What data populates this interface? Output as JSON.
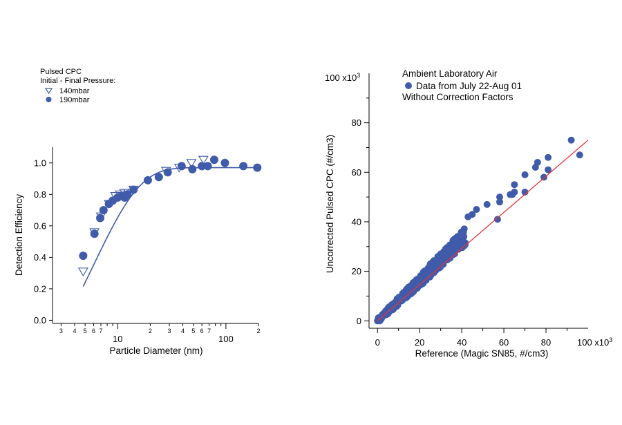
{
  "chart_data": [
    {
      "type": "scatter",
      "xscale": "log",
      "xlabel": "Particle Diameter (nm)",
      "ylabel": "Detection Efficiency",
      "xlim": [
        2.5,
        200
      ],
      "ylim": [
        -0.02,
        1.1
      ],
      "y_ticks": [
        "0.0",
        "0.2",
        "0.4",
        "0.6",
        "0.8",
        "1.0"
      ],
      "y_tick_values": [
        0,
        0.2,
        0.4,
        0.6,
        0.8,
        1.0
      ],
      "x_major_ticks": [
        {
          "value": 10,
          "label": "10"
        },
        {
          "value": 100,
          "label": "100"
        }
      ],
      "x_minor_ticks": [
        {
          "value": 3,
          "label": "3"
        },
        {
          "value": 4,
          "label": "4"
        },
        {
          "value": 5,
          "label": "5"
        },
        {
          "value": 6,
          "label": "6"
        },
        {
          "value": 7,
          "label": "7"
        },
        {
          "value": 20,
          "label": "2"
        },
        {
          "value": 30,
          "label": "3"
        },
        {
          "value": 40,
          "label": "4"
        },
        {
          "value": 50,
          "label": "5"
        },
        {
          "value": 60,
          "label": "6"
        },
        {
          "value": 70,
          "label": "7"
        },
        {
          "value": 200,
          "label": "2"
        },
        {
          "value": 8,
          "label": ""
        },
        {
          "value": 9,
          "label": ""
        },
        {
          "value": 80,
          "label": ""
        },
        {
          "value": 90,
          "label": ""
        }
      ],
      "legend": {
        "title_line1": "Pulsed CPC",
        "title_line2": "Initial - Final Pressure:",
        "position": "top-left"
      },
      "series": [
        {
          "name": "140mbar",
          "marker": "open-triangle-down",
          "color": "#3f5ba9",
          "x": [
            4.8,
            6.1,
            7.0,
            8.3,
            9.5,
            10.5,
            11.5,
            12.5,
            14.0,
            28.0,
            37.0,
            48.0,
            62.0
          ],
          "y": [
            0.31,
            0.56,
            0.66,
            0.74,
            0.79,
            0.8,
            0.81,
            0.81,
            0.83,
            0.95,
            0.97,
            1.0,
            1.02
          ]
        },
        {
          "name": "190mbar",
          "marker": "filled-circle",
          "color": "#3f5ba9",
          "x": [
            4.8,
            6.1,
            6.9,
            7.4,
            8.3,
            9.0,
            10.0,
            10.8,
            11.6,
            12.3,
            14.0,
            19.0,
            24.0,
            29.0,
            39.0,
            49.0,
            60.0,
            68.0,
            78.0,
            98.0,
            145.0,
            195.0
          ],
          "y": [
            0.41,
            0.55,
            0.65,
            0.7,
            0.74,
            0.76,
            0.78,
            0.79,
            0.78,
            0.8,
            0.83,
            0.89,
            0.91,
            0.94,
            0.98,
            0.96,
            0.98,
            0.98,
            1.02,
            1.0,
            0.98,
            0.97
          ]
        }
      ],
      "fit": {
        "type": "exponential-saturation",
        "color": "#3f5ba9",
        "plateau": 0.97,
        "x0": 3.3,
        "k": 0.167
      }
    },
    {
      "type": "scatter",
      "xlabel": "Reference  (Magic SN85, #/cm3)",
      "ylabel": "Uncorrected Pulsed CPC (#/cm3)",
      "xlim": [
        -4,
        100
      ],
      "ylim": [
        -3,
        100
      ],
      "x_ticks": [
        "0",
        "20",
        "40",
        "60",
        "80"
      ],
      "x_tick_values": [
        0,
        20,
        40,
        60,
        80
      ],
      "x_multiplier": "100 x10",
      "x_multiplier_exp": "3",
      "y_ticks": [
        "0",
        "20",
        "40",
        "60",
        "80"
      ],
      "y_tick_values": [
        0,
        20,
        40,
        60,
        80
      ],
      "y_multiplier": "100 x10",
      "y_multiplier_exp": "3",
      "annotation": {
        "line1": "Ambient Laboratory Air",
        "legend_label": "Data from July 22-Aug 01",
        "line3": "Without Correction Factors",
        "position": "top-left"
      },
      "series": [
        {
          "name": "Data from July 22-Aug 01",
          "marker": "filled-circle",
          "color": "#3f5ba9",
          "band_from_x": 0,
          "band_to_x": 42,
          "band_center_slope": 0.82,
          "band_half_width": 2.2,
          "x": [
            43,
            45,
            47,
            52,
            57,
            58,
            58,
            63,
            64,
            65,
            65,
            70,
            70,
            75,
            76,
            79,
            81,
            81,
            92,
            96
          ],
          "y": [
            42,
            43,
            45,
            47,
            41,
            48,
            50,
            51,
            51,
            52,
            55,
            52,
            59,
            62,
            64,
            58,
            61,
            66,
            73,
            67
          ]
        }
      ],
      "fit": {
        "type": "line",
        "color": "#e8353a",
        "x": [
          0,
          100
        ],
        "y": [
          0,
          73
        ]
      }
    }
  ]
}
